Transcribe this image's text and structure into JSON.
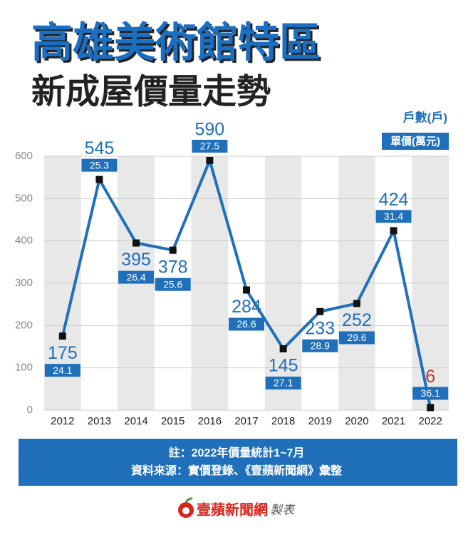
{
  "chart_data": {
    "type": "line",
    "title": "高雄美術館特區",
    "subtitle": "新成屋價量走勢",
    "categories": [
      "2012",
      "2013",
      "2014",
      "2015",
      "2016",
      "2017",
      "2018",
      "2019",
      "2020",
      "2021",
      "2022"
    ],
    "series": [
      {
        "name": "戶數(戶)",
        "color": "#1f6fba",
        "values": [
          175,
          545,
          395,
          378,
          590,
          284,
          145,
          233,
          252,
          424,
          6
        ],
        "value_label_colors": [
          "#1f6fba",
          "#1f6fba",
          "#1f6fba",
          "#1f6fba",
          "#1f6fba",
          "#1f6fba",
          "#1f6fba",
          "#1f6fba",
          "#1f6fba",
          "#1f6fba",
          "#c0392b"
        ]
      },
      {
        "name": "單價(萬元)",
        "color": "#1f6fba",
        "values": [
          24.1,
          25.3,
          26.4,
          25.6,
          27.5,
          26.6,
          27.1,
          28.9,
          29.6,
          31.4,
          36.1
        ]
      }
    ],
    "ylim": [
      0,
      600
    ],
    "yticks": [
      0,
      100,
      200,
      300,
      400,
      500,
      600
    ],
    "grid": true,
    "notes": [
      "註：2022年價量統計1~7月",
      "資料來源：實價登錄、《壹蘋新聞網》彙整"
    ],
    "source": {
      "brand": "壹蘋新聞網",
      "suffix": "製表"
    }
  }
}
